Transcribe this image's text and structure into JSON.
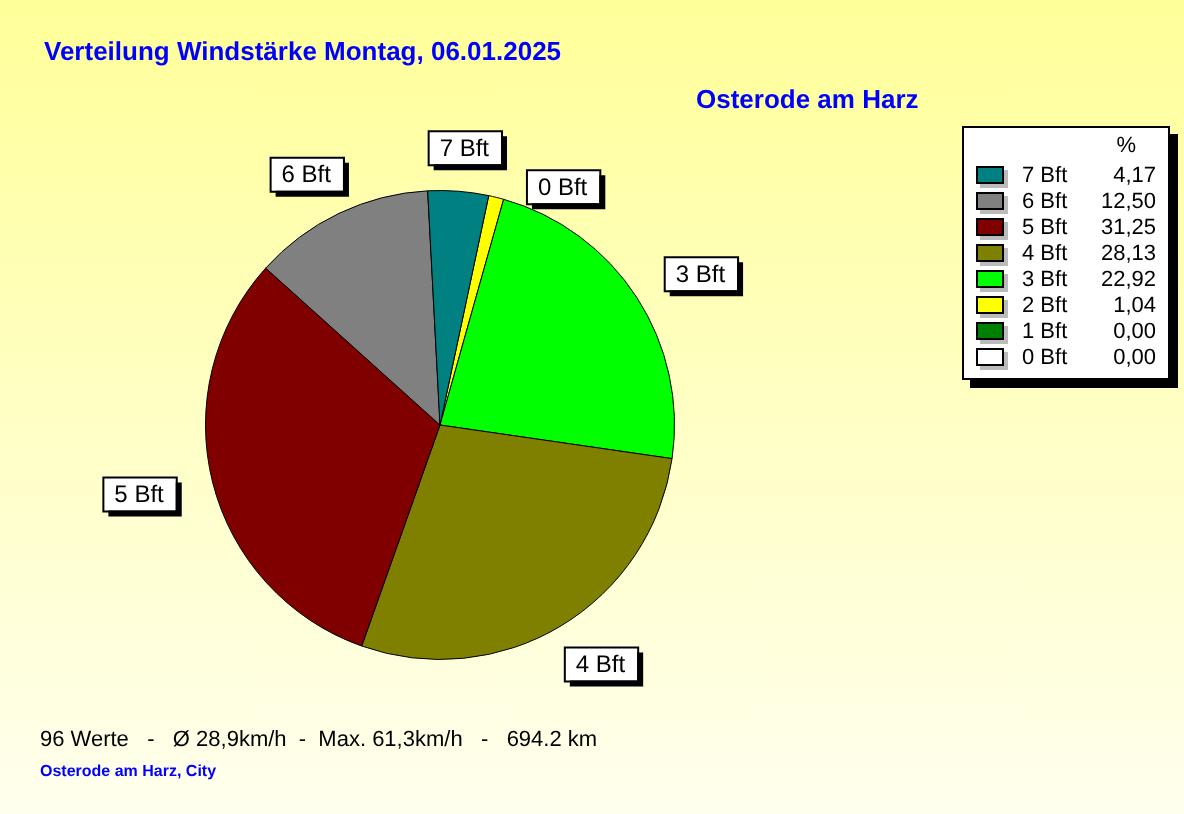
{
  "chart_data": {
    "type": "pie",
    "title": "Verteilung Windstärke  Montag, 06.01.2025",
    "subtitle": "Osterode am Harz",
    "legend_title": "%",
    "legend": "right",
    "categories": [
      "0 Bft",
      "1 Bft",
      "2 Bft",
      "3 Bft",
      "4 Bft",
      "5 Bft",
      "6 Bft",
      "7 Bft"
    ],
    "values": [
      0,
      0,
      1.04,
      22.92,
      28.13,
      31.25,
      12.5,
      4.17
    ],
    "value_labels": [
      "0,00",
      "0,00",
      "1,04",
      "22,92",
      "28,13",
      "31,25",
      "12,50",
      "4,17"
    ],
    "colors": [
      "#ffffff",
      "#008000",
      "#ffff00",
      "#00ff00",
      "#808000",
      "#800000",
      "#808080",
      "#008080"
    ],
    "annotations": [
      {
        "text": "0 Bft",
        "x": "0 Bft"
      },
      {
        "text": "3 Bft",
        "x": "3 Bft"
      },
      {
        "text": "4 Bft",
        "x": "4 Bft"
      },
      {
        "text": "5 Bft",
        "x": "5 Bft"
      },
      {
        "text": "6 Bft",
        "x": "6 Bft"
      },
      {
        "text": "7 Bft",
        "x": "7 Bft"
      },
      "96 Werte   -   Ø 28,9km/h  -  Max. 61,3km/h   -   694.2 km",
      "Osterode am Harz, City"
    ]
  }
}
